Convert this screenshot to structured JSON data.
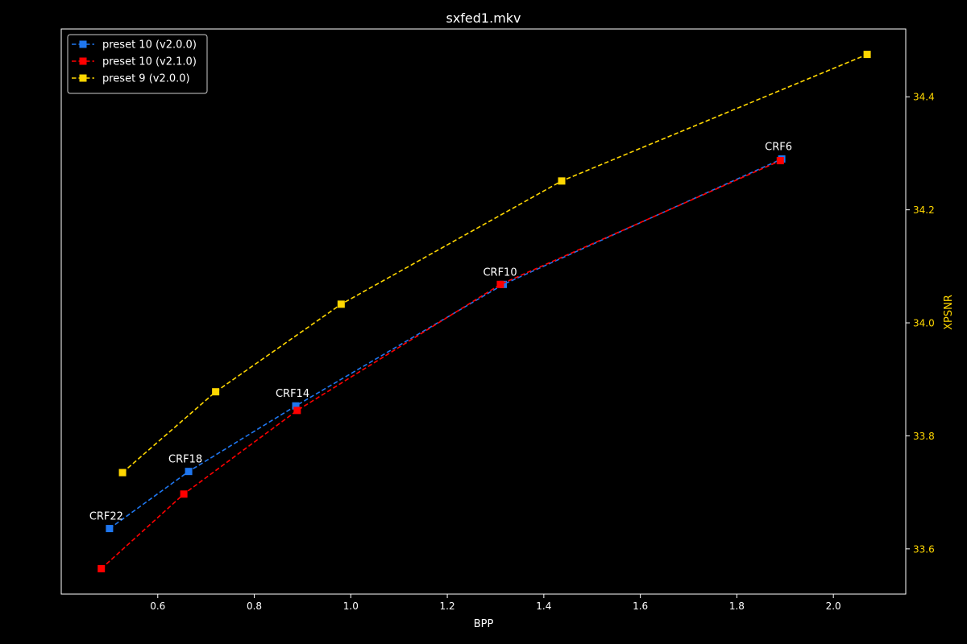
{
  "chart_data": {
    "type": "line",
    "title": "sxfed1.mkv",
    "xlabel": "BPP",
    "ylabel": "XPSNR",
    "xlim": [
      0.4,
      2.15
    ],
    "ylim": [
      33.52,
      34.52
    ],
    "x_ticks": [
      0.6,
      0.8,
      1.0,
      1.2,
      1.4,
      1.6,
      1.8,
      2.0
    ],
    "x_tick_labels": [
      "0.6",
      "0.8",
      "1.0",
      "1.2",
      "1.4",
      "1.6",
      "1.8",
      "2.0"
    ],
    "y_ticks": [
      33.6,
      33.8,
      34.0,
      34.2,
      34.4
    ],
    "y_tick_labels": [
      "33.6",
      "33.8",
      "34.0",
      "34.2",
      "34.4"
    ],
    "y_axis_side": "right",
    "legend_position": "top-left",
    "grid": false,
    "series": [
      {
        "name": "preset 10 (v2.0.0)",
        "color": "#1f77f0",
        "points": [
          [
            0.5,
            33.636
          ],
          [
            0.664,
            33.737
          ],
          [
            0.886,
            33.853
          ],
          [
            1.316,
            34.068
          ],
          [
            1.893,
            34.29
          ]
        ]
      },
      {
        "name": "preset 10 (v2.1.0)",
        "color": "#ff0000",
        "points": [
          [
            0.483,
            33.565
          ],
          [
            0.654,
            33.697
          ],
          [
            0.889,
            33.845
          ],
          [
            1.31,
            34.068
          ],
          [
            1.89,
            34.287
          ]
        ]
      },
      {
        "name": "preset 9 (v2.0.0)",
        "color": "#ffd700",
        "points": [
          [
            0.527,
            33.735
          ],
          [
            0.72,
            33.878
          ],
          [
            0.98,
            34.033
          ],
          [
            1.437,
            34.251
          ],
          [
            2.07,
            34.475
          ]
        ]
      }
    ],
    "annotations": [
      {
        "text": "CRF22",
        "x": 0.5,
        "y": 33.636
      },
      {
        "text": "CRF18",
        "x": 0.664,
        "y": 33.737
      },
      {
        "text": "CRF14",
        "x": 0.886,
        "y": 33.853
      },
      {
        "text": "CRF10",
        "x": 1.316,
        "y": 34.068
      },
      {
        "text": "CRF6",
        "x": 1.893,
        "y": 34.29
      }
    ],
    "colors": {
      "background": "#000000",
      "axes": "#ffffff",
      "text": "#ffffff",
      "y_axis_text": "#ffd700"
    }
  }
}
